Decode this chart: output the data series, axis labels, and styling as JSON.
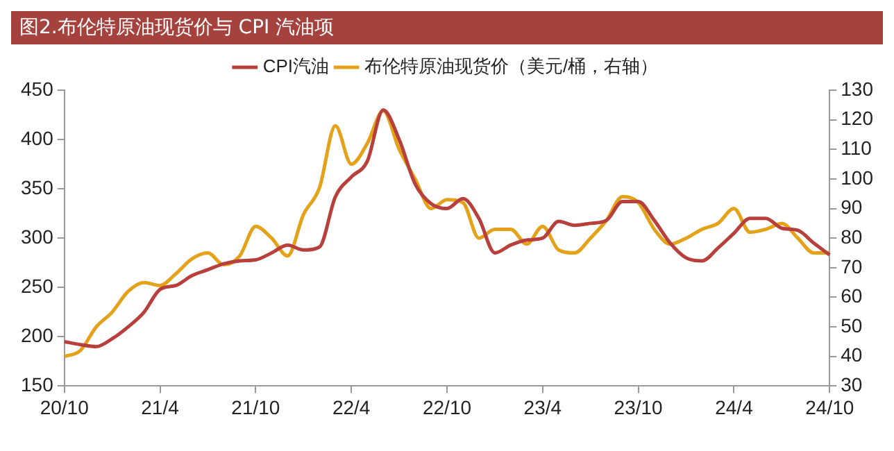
{
  "chart_data": {
    "type": "line",
    "title": "图2.布伦特原油现货价与 CPI 汽油项",
    "categories": [
      "20/10",
      null,
      null,
      null,
      null,
      null,
      "21/4",
      null,
      null,
      null,
      null,
      null,
      "21/10",
      null,
      null,
      null,
      null,
      null,
      "22/4",
      null,
      null,
      null,
      null,
      null,
      "22/10",
      null,
      null,
      null,
      null,
      null,
      "23/4",
      null,
      null,
      null,
      null,
      null,
      "23/10",
      null,
      null,
      null,
      null,
      null,
      "24/4",
      null,
      null,
      null,
      null,
      null,
      "24/10"
    ],
    "series": [
      {
        "name": "CPI汽油",
        "color": "#b8403c",
        "values": [
          195,
          192,
          190,
          198,
          210,
          225,
          248,
          252,
          262,
          268,
          274,
          277,
          278,
          285,
          293,
          288,
          291,
          342,
          362,
          378,
          430,
          400,
          355,
          335,
          330,
          340,
          320,
          285,
          293,
          298,
          300,
          317,
          313,
          315,
          318,
          337,
          337,
          318,
          295,
          280,
          277,
          290,
          305,
          320,
          320,
          310,
          308,
          295,
          283
        ]
      },
      {
        "name": "布伦特原油现货价（美元/桶，右轴）",
        "color": "#e3a21a",
        "axis": "y2",
        "values": [
          40,
          42,
          50,
          55,
          62,
          65,
          64,
          68,
          73,
          75,
          71,
          74,
          84,
          80,
          74,
          88,
          97,
          118,
          105,
          112,
          123,
          110,
          100,
          90,
          93,
          92,
          80,
          83,
          83,
          78,
          84,
          76,
          75,
          80,
          86,
          94,
          92,
          83,
          78,
          80,
          83,
          85,
          90,
          82,
          83,
          85,
          80,
          75,
          75
        ]
      }
    ],
    "ylim": [
      150,
      450
    ],
    "yticks": [
      150,
      200,
      250,
      300,
      350,
      400,
      450
    ],
    "y2lim": [
      30,
      130
    ],
    "y2ticks": [
      30,
      40,
      50,
      60,
      70,
      80,
      90,
      100,
      110,
      120,
      130
    ],
    "grid": false,
    "legend": "top",
    "marker": "none",
    "line_style": "solid"
  }
}
